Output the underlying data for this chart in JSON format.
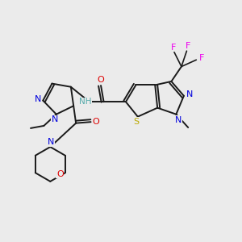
{
  "background_color": "#ebebeb",
  "atom_colors": {
    "C": "#1a1a1a",
    "N": "#0000dd",
    "O": "#dd0000",
    "S": "#bbaa00",
    "F": "#ee00ee",
    "H": "#55aaaa",
    "NH": "#55aaaa"
  },
  "bond_color": "#1a1a1a",
  "figsize": [
    3.0,
    3.0
  ],
  "dpi": 100,
  "xlim": [
    0,
    10
  ],
  "ylim": [
    0,
    10
  ]
}
